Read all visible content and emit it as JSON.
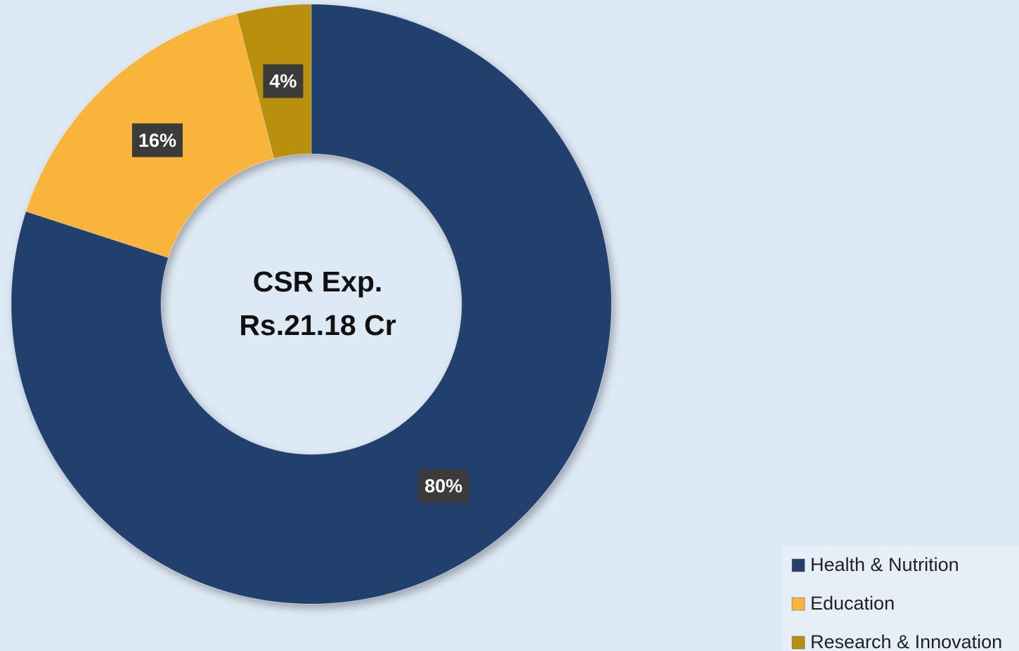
{
  "chart_data": {
    "type": "donut",
    "center_label": [
      "CSR Exp.",
      "Rs.21.18 Cr"
    ],
    "categories": [
      "Health & Nutrition",
      "Education",
      "Research & Innovation"
    ],
    "values": [
      80,
      16,
      4
    ],
    "value_labels": [
      "80%",
      "16%",
      "4%"
    ],
    "colors": [
      "#243f6e",
      "#f9b43a",
      "#b8900f"
    ],
    "legend": "bottom-right"
  }
}
